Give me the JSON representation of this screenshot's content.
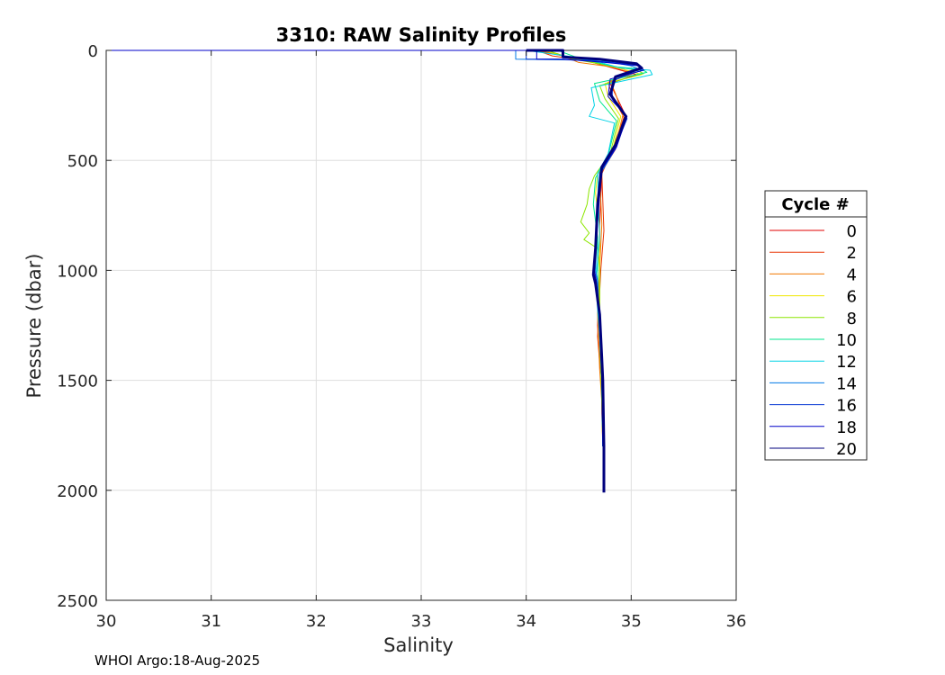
{
  "chart_data": {
    "type": "line",
    "title": "3310: RAW Salinity Profiles",
    "xlabel": "Salinity",
    "ylabel": "Pressure (dbar)",
    "xlim": [
      30,
      36
    ],
    "ylim": [
      0,
      2500
    ],
    "y_reversed": true,
    "grid": true,
    "x_ticks": [
      "30",
      "31",
      "32",
      "33",
      "34",
      "35",
      "36"
    ],
    "y_ticks": [
      "0",
      "500",
      "1000",
      "1500",
      "2000",
      "2500"
    ],
    "legend": {
      "title": "Cycle #",
      "placement": "right",
      "entries": [
        {
          "label": "0",
          "color": "#e00000"
        },
        {
          "label": "2",
          "color": "#e83200"
        },
        {
          "label": "4",
          "color": "#f07800"
        },
        {
          "label": "6",
          "color": "#f0e600"
        },
        {
          "label": "8",
          "color": "#8ce600"
        },
        {
          "label": "10",
          "color": "#00e68c"
        },
        {
          "label": "12",
          "color": "#00d2e6"
        },
        {
          "label": "14",
          "color": "#0078e6"
        },
        {
          "label": "16",
          "color": "#0032d2"
        },
        {
          "label": "18",
          "color": "#0000c8"
        },
        {
          "label": "20",
          "color": "#00007d"
        }
      ]
    },
    "series": [
      {
        "name": "0",
        "color": "#e00000",
        "points": [
          [
            30.0,
            0
          ],
          [
            34.1,
            0
          ],
          [
            34.3,
            20
          ],
          [
            34.6,
            50
          ],
          [
            34.9,
            90
          ],
          [
            35.05,
            110
          ],
          [
            34.8,
            150
          ],
          [
            34.85,
            200
          ],
          [
            34.95,
            300
          ],
          [
            34.85,
            450
          ],
          [
            34.72,
            550
          ],
          [
            34.7,
            800
          ],
          [
            34.7,
            1000
          ],
          [
            34.68,
            1250
          ],
          [
            34.7,
            1400
          ],
          [
            34.72,
            1500
          ],
          [
            34.72,
            1600
          ],
          [
            34.73,
            1750
          ],
          [
            34.73,
            1800
          ]
        ]
      },
      {
        "name": "2",
        "color": "#e83200",
        "points": [
          [
            30.0,
            0
          ],
          [
            34.1,
            0
          ],
          [
            34.25,
            25
          ],
          [
            34.55,
            45
          ],
          [
            34.88,
            85
          ],
          [
            35.02,
            105
          ],
          [
            34.78,
            145
          ],
          [
            34.82,
            205
          ],
          [
            34.93,
            305
          ],
          [
            34.82,
            455
          ],
          [
            34.72,
            560
          ],
          [
            34.74,
            820
          ],
          [
            34.71,
            1000
          ],
          [
            34.68,
            1300
          ],
          [
            34.7,
            1420
          ],
          [
            34.72,
            1500
          ],
          [
            34.72,
            1650
          ],
          [
            34.73,
            1800
          ]
        ]
      },
      {
        "name": "4",
        "color": "#f07800",
        "points": [
          [
            30.0,
            0
          ],
          [
            34.05,
            0
          ],
          [
            34.3,
            15
          ],
          [
            34.5,
            55
          ],
          [
            34.9,
            80
          ],
          [
            35.0,
            100
          ],
          [
            34.8,
            140
          ],
          [
            34.85,
            195
          ],
          [
            34.92,
            295
          ],
          [
            34.84,
            450
          ],
          [
            34.7,
            555
          ],
          [
            34.72,
            790
          ],
          [
            34.7,
            990
          ],
          [
            34.68,
            1200
          ],
          [
            34.7,
            1450
          ],
          [
            34.72,
            1600
          ],
          [
            34.73,
            1800
          ]
        ]
      },
      {
        "name": "6",
        "color": "#f0e600",
        "points": [
          [
            30.0,
            0
          ],
          [
            34.15,
            0
          ],
          [
            34.4,
            30
          ],
          [
            34.7,
            60
          ],
          [
            35.0,
            95
          ],
          [
            35.1,
            110
          ],
          [
            34.75,
            150
          ],
          [
            34.78,
            210
          ],
          [
            34.9,
            300
          ],
          [
            34.82,
            460
          ],
          [
            34.68,
            560
          ],
          [
            34.66,
            650
          ],
          [
            34.7,
            800
          ],
          [
            34.7,
            1000
          ],
          [
            34.7,
            1200
          ],
          [
            34.72,
            1580
          ],
          [
            34.73,
            1800
          ]
        ]
      },
      {
        "name": "8",
        "color": "#8ce600",
        "points": [
          [
            30.0,
            0
          ],
          [
            34.2,
            0
          ],
          [
            34.45,
            40
          ],
          [
            34.8,
            70
          ],
          [
            35.05,
            90
          ],
          [
            35.12,
            105
          ],
          [
            34.7,
            160
          ],
          [
            34.75,
            220
          ],
          [
            34.88,
            310
          ],
          [
            34.8,
            470
          ],
          [
            34.65,
            570
          ],
          [
            34.6,
            630
          ],
          [
            34.58,
            700
          ],
          [
            34.52,
            780
          ],
          [
            34.6,
            830
          ],
          [
            34.55,
            860
          ],
          [
            34.68,
            900
          ],
          [
            34.7,
            1000
          ],
          [
            34.7,
            1300
          ],
          [
            34.72,
            1600
          ],
          [
            34.73,
            1800
          ]
        ]
      },
      {
        "name": "10",
        "color": "#00e68c",
        "points": [
          [
            30.0,
            0
          ],
          [
            34.3,
            0
          ],
          [
            34.5,
            35
          ],
          [
            34.85,
            75
          ],
          [
            35.1,
            85
          ],
          [
            35.15,
            100
          ],
          [
            34.65,
            150
          ],
          [
            34.7,
            230
          ],
          [
            34.86,
            320
          ],
          [
            34.78,
            480
          ],
          [
            34.66,
            580
          ],
          [
            34.64,
            700
          ],
          [
            34.68,
            850
          ],
          [
            34.68,
            1000
          ],
          [
            34.7,
            1300
          ],
          [
            34.72,
            1500
          ],
          [
            34.73,
            1800
          ]
        ]
      },
      {
        "name": "12",
        "color": "#00d2e6",
        "points": [
          [
            30.0,
            0
          ],
          [
            34.0,
            0
          ],
          [
            34.6,
            40
          ],
          [
            34.9,
            80
          ],
          [
            35.18,
            90
          ],
          [
            35.2,
            110
          ],
          [
            34.62,
            170
          ],
          [
            34.65,
            250
          ],
          [
            34.6,
            300
          ],
          [
            34.84,
            330
          ],
          [
            34.78,
            470
          ],
          [
            34.68,
            560
          ],
          [
            34.7,
            850
          ],
          [
            34.66,
            1050
          ],
          [
            34.7,
            1300
          ],
          [
            34.72,
            1500
          ],
          [
            34.73,
            1800
          ]
        ]
      },
      {
        "name": "14",
        "color": "#0078e6",
        "points": [
          [
            30.0,
            0
          ],
          [
            33.9,
            0
          ],
          [
            33.9,
            40
          ],
          [
            34.7,
            45
          ],
          [
            35.0,
            70
          ],
          [
            35.1,
            90
          ],
          [
            34.85,
            130
          ],
          [
            34.8,
            200
          ],
          [
            34.95,
            300
          ],
          [
            34.86,
            440
          ],
          [
            34.72,
            550
          ],
          [
            34.68,
            750
          ],
          [
            34.66,
            1000
          ],
          [
            34.68,
            1050
          ],
          [
            34.7,
            1250
          ],
          [
            34.72,
            1500
          ],
          [
            34.73,
            1800
          ]
        ]
      },
      {
        "name": "16",
        "color": "#0032d2",
        "points": [
          [
            30.0,
            0
          ],
          [
            34.0,
            0
          ],
          [
            34.0,
            40
          ],
          [
            34.3,
            40
          ],
          [
            34.7,
            50
          ],
          [
            35.05,
            65
          ],
          [
            35.1,
            80
          ],
          [
            34.82,
            140
          ],
          [
            34.82,
            220
          ],
          [
            34.96,
            310
          ],
          [
            34.84,
            450
          ],
          [
            34.7,
            560
          ],
          [
            34.67,
            800
          ],
          [
            34.64,
            1000
          ],
          [
            34.66,
            1050
          ],
          [
            34.7,
            1200
          ],
          [
            34.72,
            1500
          ],
          [
            34.73,
            1800
          ]
        ]
      },
      {
        "name": "18",
        "color": "#0000c8",
        "points": [
          [
            30.0,
            0
          ],
          [
            33.1,
            0
          ],
          [
            34.1,
            0
          ],
          [
            34.1,
            40
          ],
          [
            34.35,
            40
          ],
          [
            34.75,
            55
          ],
          [
            35.08,
            70
          ],
          [
            35.12,
            90
          ],
          [
            34.8,
            130
          ],
          [
            34.78,
            210
          ],
          [
            34.96,
            300
          ],
          [
            34.86,
            440
          ],
          [
            34.72,
            540
          ],
          [
            34.68,
            780
          ],
          [
            34.65,
            1000
          ],
          [
            34.67,
            1050
          ],
          [
            34.7,
            1200
          ],
          [
            34.72,
            1500
          ],
          [
            34.73,
            1800
          ]
        ]
      },
      {
        "name": "20",
        "color": "#00007d",
        "points": [
          [
            34.0,
            0
          ],
          [
            34.35,
            0
          ],
          [
            34.35,
            30
          ],
          [
            34.7,
            40
          ],
          [
            35.05,
            60
          ],
          [
            35.1,
            80
          ],
          [
            34.85,
            120
          ],
          [
            34.8,
            200
          ],
          [
            34.95,
            300
          ],
          [
            34.85,
            430
          ],
          [
            34.72,
            530
          ],
          [
            34.68,
            700
          ],
          [
            34.66,
            900
          ],
          [
            34.64,
            1020
          ],
          [
            34.66,
            1060
          ],
          [
            34.7,
            1200
          ],
          [
            34.72,
            1400
          ],
          [
            34.73,
            1500
          ],
          [
            34.74,
            1800
          ],
          [
            34.74,
            2010
          ]
        ]
      }
    ]
  },
  "footer": {
    "text": "WHOI Argo:18-Aug-2025"
  }
}
